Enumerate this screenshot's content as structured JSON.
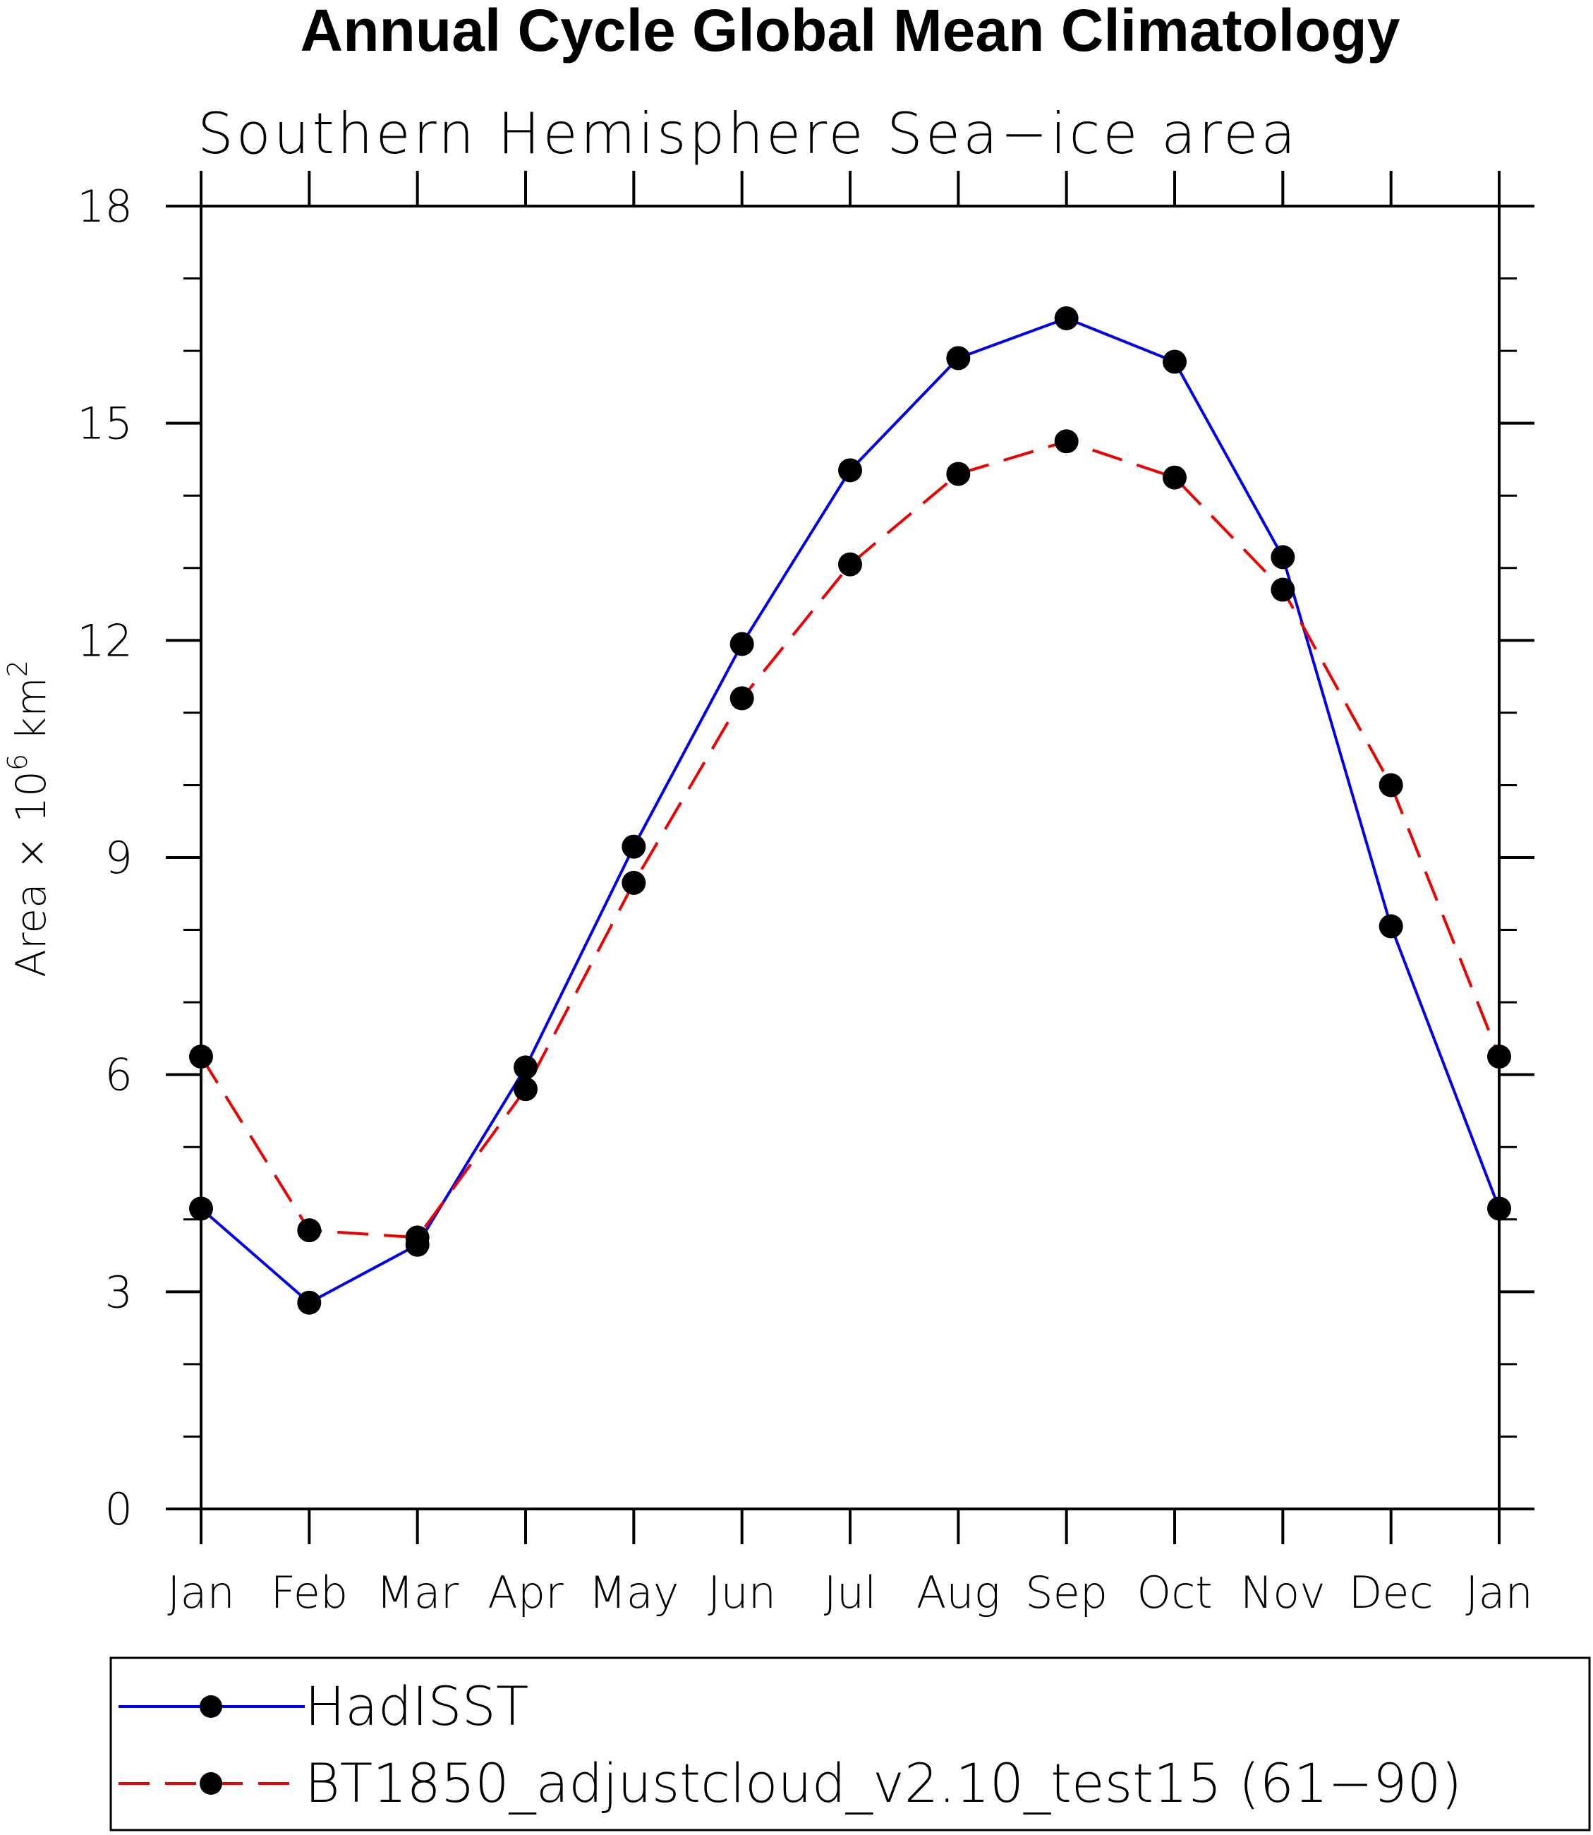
{
  "chart_data": {
    "type": "line",
    "title": "Annual Cycle Global Mean Climatology",
    "subtitle": "Southern Hemisphere Sea−ice area",
    "ylabel_prefix": "Area × 10",
    "ylabel_exp1": "6",
    "ylabel_mid": " km",
    "ylabel_exp2": "2",
    "xlabel": "",
    "categories": [
      "Jan",
      "Feb",
      "Mar",
      "Apr",
      "May",
      "Jun",
      "Jul",
      "Aug",
      "Sep",
      "Oct",
      "Nov",
      "Dec",
      "Jan"
    ],
    "ylim": [
      0,
      18
    ],
    "yticks": [
      0,
      3,
      6,
      9,
      12,
      15,
      18
    ],
    "yminor_step": 1,
    "legend_position": "bottom",
    "grid": false,
    "series": [
      {
        "name": "HadISST",
        "color": "#0000ee",
        "dash": "solid",
        "values": [
          4.15,
          2.85,
          3.65,
          6.1,
          9.15,
          11.95,
          14.35,
          15.9,
          16.45,
          15.85,
          13.15,
          8.05,
          4.15
        ]
      },
      {
        "name": "BT1850_adjustcloud_v2.10_test15 (61−90)",
        "color": "#ee0000",
        "dash": "dashed",
        "values": [
          6.25,
          3.85,
          3.75,
          5.8,
          8.65,
          11.2,
          13.05,
          14.3,
          14.75,
          14.25,
          12.7,
          10.0,
          6.25
        ]
      }
    ]
  }
}
